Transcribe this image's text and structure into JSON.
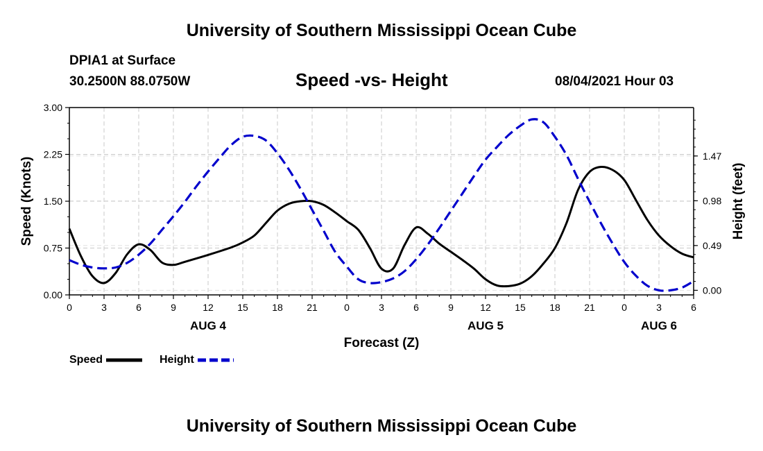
{
  "header": {
    "title_top": "University of Southern Mississippi Ocean Cube",
    "station": "DPIA1 at Surface",
    "coords": "30.2500N  88.0750W",
    "subtitle": "Speed -vs- Height",
    "datetime": "08/04/2021 Hour 03"
  },
  "footer": {
    "title_bottom": "University of Southern Mississippi Ocean Cube"
  },
  "legend": {
    "speed_label": "Speed",
    "height_label": "Height"
  },
  "colors": {
    "speed": "#000000",
    "height": "#0000cc",
    "grid": "#c8c8c8"
  },
  "chart_data": {
    "type": "line",
    "title": "Speed -vs- Height",
    "xlabel": "Forecast (Z)",
    "ylabel_left": "Speed (Knots)",
    "ylabel_right": "Height (feet)",
    "x_range_hours": [
      0,
      54
    ],
    "x_ticks": [
      {
        "h": 0,
        "label": "0"
      },
      {
        "h": 3,
        "label": "3"
      },
      {
        "h": 6,
        "label": "6"
      },
      {
        "h": 9,
        "label": "9"
      },
      {
        "h": 12,
        "label": "12"
      },
      {
        "h": 15,
        "label": "15"
      },
      {
        "h": 18,
        "label": "18"
      },
      {
        "h": 21,
        "label": "21"
      },
      {
        "h": 24,
        "label": "0"
      },
      {
        "h": 27,
        "label": "3"
      },
      {
        "h": 30,
        "label": "6"
      },
      {
        "h": 33,
        "label": "9"
      },
      {
        "h": 36,
        "label": "12"
      },
      {
        "h": 39,
        "label": "15"
      },
      {
        "h": 42,
        "label": "18"
      },
      {
        "h": 45,
        "label": "21"
      },
      {
        "h": 48,
        "label": "0"
      },
      {
        "h": 51,
        "label": "3"
      },
      {
        "h": 54,
        "label": "6"
      }
    ],
    "date_labels": [
      {
        "h": 12,
        "label": "AUG 4"
      },
      {
        "h": 36,
        "label": "AUG 5"
      },
      {
        "h": 51,
        "label": "AUG 6"
      }
    ],
    "y_left": {
      "min": 0,
      "max": 3.0,
      "ticks": [
        "0.00",
        "0.75",
        "1.50",
        "2.25",
        "3.00"
      ]
    },
    "y_right": {
      "min": -0.05,
      "max": 2.0,
      "ticks": [
        {
          "v": 0.0,
          "label": "0.00"
        },
        {
          "v": 0.49,
          "label": "0.49"
        },
        {
          "v": 0.98,
          "label": "0.98"
        },
        {
          "v": 1.47,
          "label": "1.47"
        }
      ]
    },
    "series": [
      {
        "name": "Speed",
        "axis": "left",
        "x": [
          0,
          1,
          2,
          3,
          4,
          5,
          6,
          7,
          8,
          9,
          10,
          12,
          14,
          15,
          16,
          17,
          18,
          19,
          20,
          21,
          22,
          23,
          24,
          25,
          26,
          27,
          28,
          29,
          30,
          31,
          32,
          33,
          34,
          35,
          36,
          37,
          38,
          39,
          40,
          41,
          42,
          43,
          44,
          45,
          46,
          47,
          48,
          49,
          50,
          51,
          52,
          53,
          54
        ],
        "values": [
          1.06,
          0.62,
          0.3,
          0.19,
          0.35,
          0.65,
          0.81,
          0.72,
          0.52,
          0.48,
          0.53,
          0.64,
          0.76,
          0.84,
          0.95,
          1.15,
          1.35,
          1.46,
          1.5,
          1.5,
          1.44,
          1.32,
          1.18,
          1.04,
          0.75,
          0.42,
          0.42,
          0.8,
          1.08,
          0.98,
          0.82,
          0.69,
          0.56,
          0.42,
          0.25,
          0.15,
          0.14,
          0.18,
          0.3,
          0.5,
          0.75,
          1.15,
          1.68,
          1.97,
          2.05,
          2.0,
          1.84,
          1.52,
          1.2,
          0.95,
          0.78,
          0.66,
          0.6
        ]
      },
      {
        "name": "Height",
        "axis": "right",
        "x": [
          0,
          1,
          2,
          3,
          4,
          5,
          6,
          7,
          8,
          9,
          10,
          11,
          12,
          13,
          14,
          15,
          16,
          17,
          18,
          19,
          20,
          21,
          22,
          23,
          24,
          25,
          26,
          27,
          28,
          29,
          30,
          31,
          32,
          33,
          34,
          35,
          36,
          37,
          38,
          39,
          40,
          41,
          42,
          43,
          44,
          45,
          46,
          47,
          48,
          49,
          50,
          51,
          52,
          53,
          54
        ],
        "values": [
          0.33,
          0.28,
          0.25,
          0.24,
          0.25,
          0.3,
          0.39,
          0.51,
          0.66,
          0.81,
          0.97,
          1.14,
          1.3,
          1.45,
          1.59,
          1.68,
          1.69,
          1.64,
          1.5,
          1.32,
          1.11,
          0.88,
          0.65,
          0.42,
          0.26,
          0.12,
          0.08,
          0.09,
          0.13,
          0.21,
          0.34,
          0.5,
          0.68,
          0.87,
          1.06,
          1.25,
          1.43,
          1.57,
          1.7,
          1.8,
          1.87,
          1.84,
          1.68,
          1.48,
          1.22,
          0.97,
          0.73,
          0.51,
          0.31,
          0.16,
          0.05,
          0.0,
          0.0,
          0.03,
          0.1
        ]
      }
    ]
  }
}
